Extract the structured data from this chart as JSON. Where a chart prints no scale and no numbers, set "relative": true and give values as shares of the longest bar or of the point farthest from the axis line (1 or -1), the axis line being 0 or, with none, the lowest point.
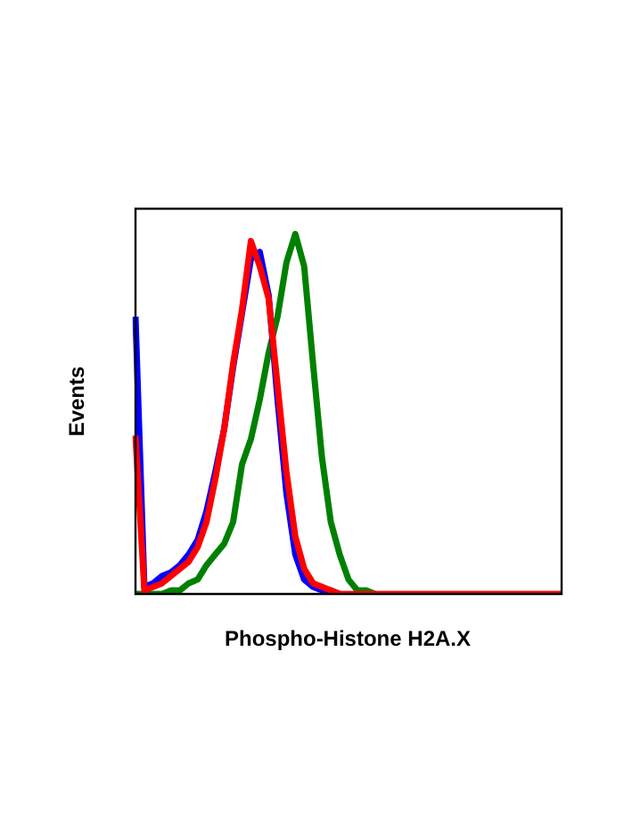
{
  "chart_data": {
    "type": "line",
    "xlabel": "Phospho-Histone H2A.X",
    "ylabel": "Events",
    "relative": true,
    "tick_labels": false,
    "marker": "none",
    "categories": [
      null,
      null,
      null,
      null,
      null,
      null,
      null,
      null,
      null,
      null,
      null,
      null,
      null,
      null,
      null,
      null,
      null,
      null,
      null,
      null,
      null,
      null,
      null,
      null,
      null,
      null,
      null,
      null,
      null,
      null,
      null,
      null,
      null,
      null,
      null,
      null,
      null,
      null,
      null,
      null,
      null,
      null,
      null,
      null,
      null,
      null,
      null,
      null,
      null
    ],
    "series": [
      {
        "color": "#ff0000",
        "values": [
          0.44,
          0.01,
          0.02,
          0.03,
          0.05,
          0.07,
          0.09,
          0.13,
          0.2,
          0.32,
          0.46,
          0.64,
          0.79,
          0.98,
          0.91,
          0.82,
          0.58,
          0.34,
          0.16,
          0.07,
          0.03,
          0.02,
          0.01,
          0,
          0,
          0,
          0,
          0,
          0,
          0,
          0,
          0,
          0,
          0,
          0,
          0,
          0,
          0,
          0,
          0,
          0,
          0,
          0,
          0,
          0,
          0,
          0,
          0,
          0
        ]
      },
      {
        "color": "#0000ff",
        "values": [
          0.77,
          0.02,
          0.03,
          0.05,
          0.06,
          0.08,
          0.11,
          0.15,
          0.23,
          0.34,
          0.46,
          0.63,
          0.78,
          0.93,
          0.95,
          0.83,
          0.54,
          0.28,
          0.11,
          0.04,
          0.02,
          0.01,
          0.01,
          0,
          null,
          null,
          null,
          null,
          null,
          null,
          null,
          null,
          null,
          null,
          null,
          null,
          null,
          null,
          null,
          null,
          null,
          null,
          null,
          null,
          null,
          null,
          null,
          null,
          null
        ]
      },
      {
        "color": "#008000",
        "values": [
          0,
          0,
          0,
          0,
          0.01,
          0.01,
          0.03,
          0.04,
          0.08,
          0.11,
          0.14,
          0.2,
          0.36,
          0.43,
          0.54,
          0.67,
          0.77,
          0.92,
          1,
          0.91,
          0.64,
          0.38,
          0.2,
          0.11,
          0.04,
          0.01,
          0.01,
          0,
          null,
          null,
          null,
          null,
          null,
          null,
          null,
          null,
          null,
          null,
          null,
          null,
          null,
          null,
          null,
          null,
          null,
          null,
          null,
          null,
          null
        ]
      }
    ]
  }
}
